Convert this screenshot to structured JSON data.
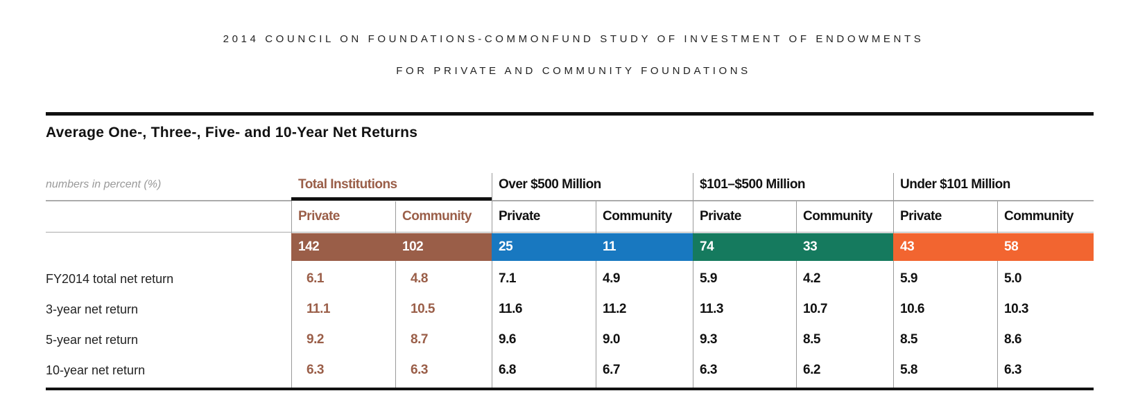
{
  "header": {
    "line1": "2014 COUNCIL ON FOUNDATIONS-COMMONFUND STUDY OF INVESTMENT OF ENDOWMENTS",
    "line2": "FOR PRIVATE AND COMMUNITY FOUNDATIONS"
  },
  "table": {
    "title": "Average One-, Three-, Five- and 10-Year Net Returns",
    "note": "numbers in percent (%)",
    "groups": [
      {
        "label": "Total Institutions",
        "color": "#9a5e48",
        "sub": [
          "Private",
          "Community"
        ],
        "counts": [
          "142",
          "102"
        ]
      },
      {
        "label": "Over $500 Million",
        "color": "#1878c0",
        "sub": [
          "Private",
          "Community"
        ],
        "counts": [
          "25",
          "11"
        ]
      },
      {
        "label": "$101–$500 Million",
        "color": "#157a5e",
        "sub": [
          "Private",
          "Community"
        ],
        "counts": [
          "74",
          "33"
        ]
      },
      {
        "label": "Under $101 Million",
        "color": "#f26530",
        "sub": [
          "Private",
          "Community"
        ],
        "counts": [
          "43",
          "58"
        ]
      }
    ],
    "rows": [
      {
        "label": "FY2014 total net return",
        "values": [
          "6.1",
          "4.8",
          "7.1",
          "4.9",
          "5.9",
          "4.2",
          "5.9",
          "5.0"
        ]
      },
      {
        "label": "3-year net return",
        "values": [
          "11.1",
          "10.5",
          "11.6",
          "11.2",
          "11.3",
          "10.7",
          "10.6",
          "10.3"
        ]
      },
      {
        "label": "5-year net return",
        "values": [
          "9.2",
          "8.7",
          "9.6",
          "9.0",
          "9.3",
          "8.5",
          "8.5",
          "8.6"
        ]
      },
      {
        "label": "10-year net return",
        "values": [
          "6.3",
          "6.3",
          "6.8",
          "6.7",
          "6.3",
          "6.2",
          "5.8",
          "6.3"
        ]
      }
    ]
  }
}
